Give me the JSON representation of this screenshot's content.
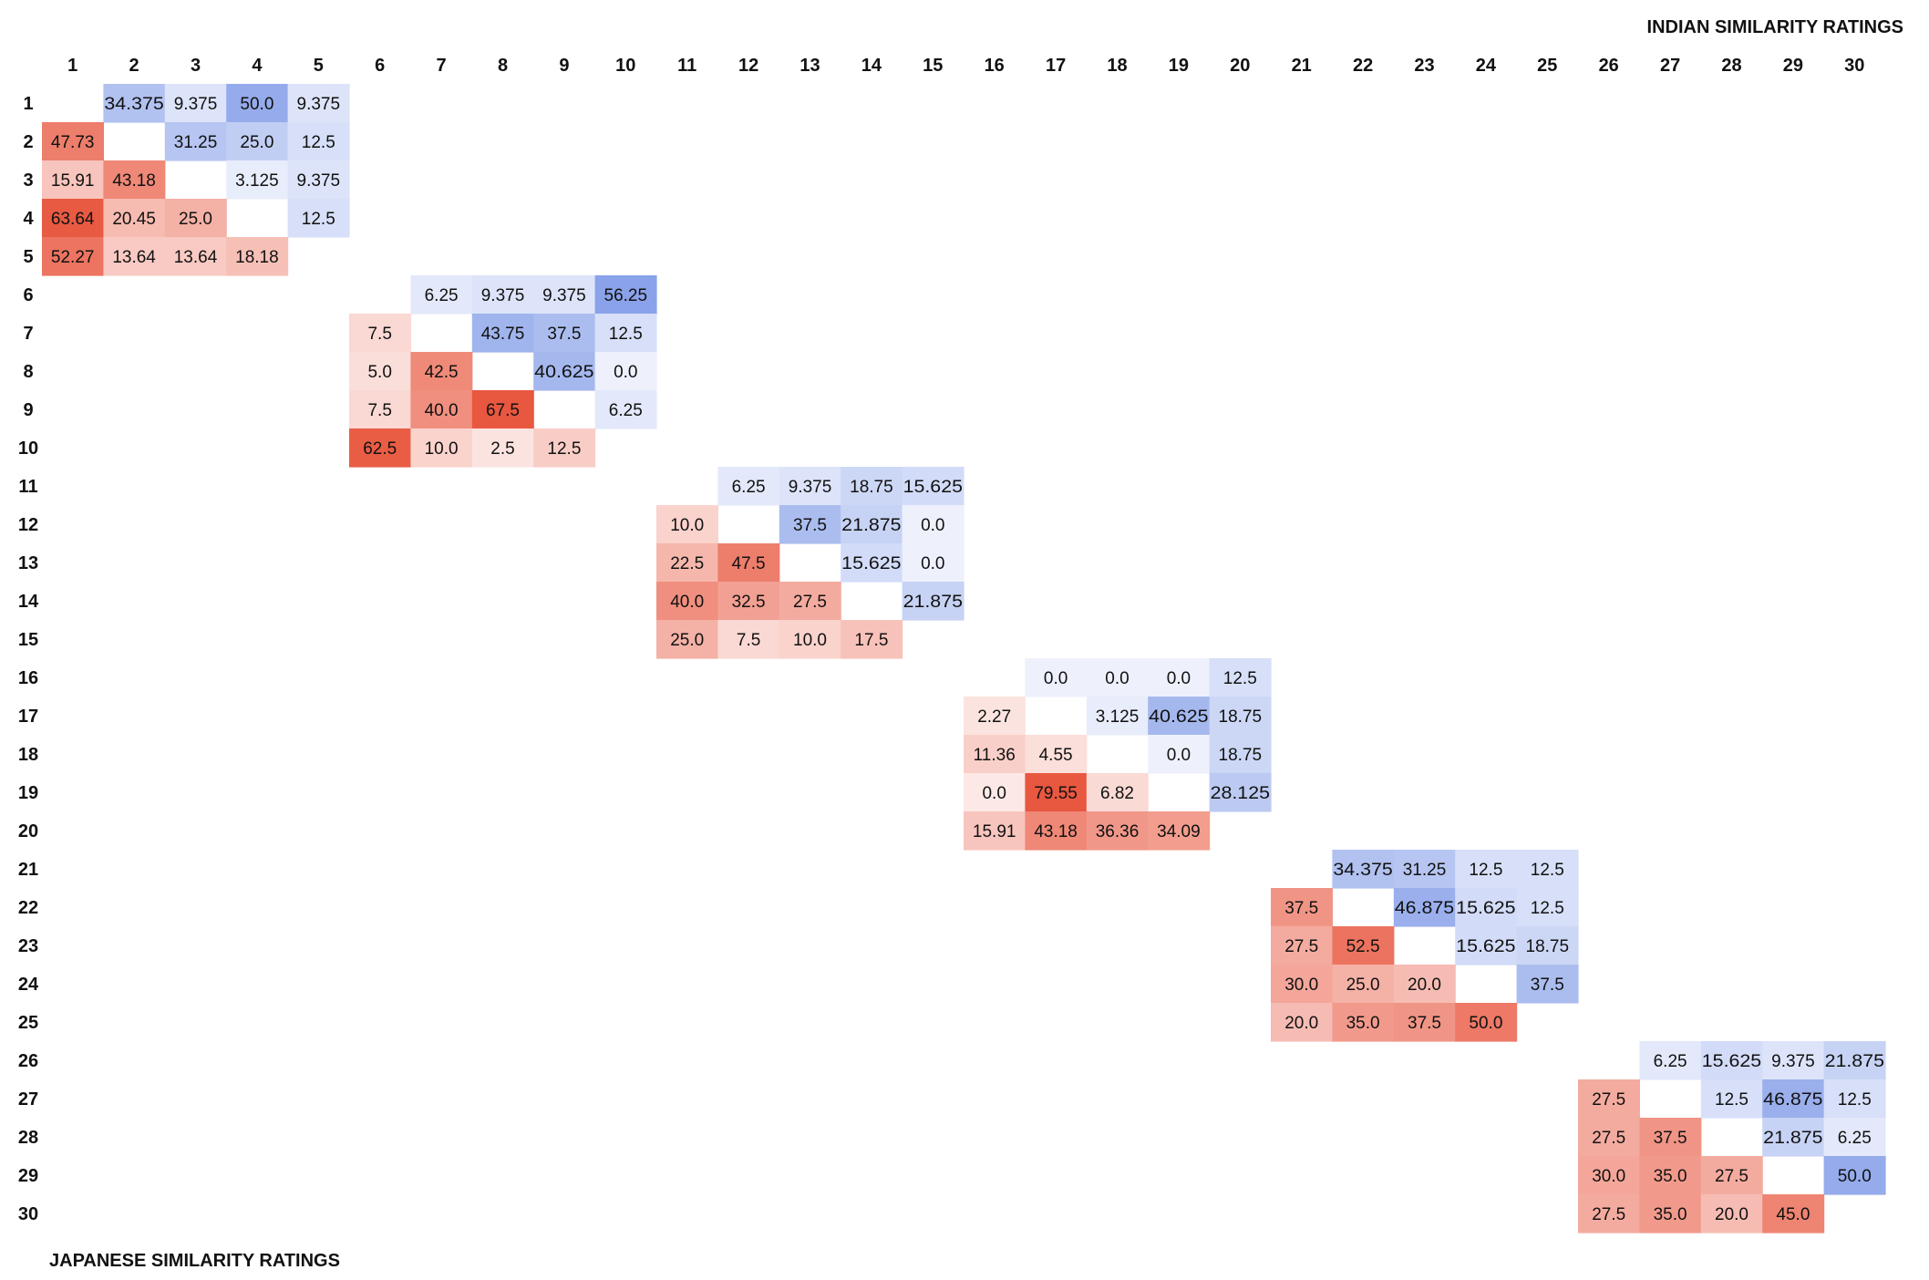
{
  "chart_data": {
    "type": "heatmap",
    "title": "",
    "upper_label": "INDIAN SIMILARITY RATINGS",
    "lower_label": "JAPANESE SIMILARITY RATINGS",
    "row_labels": [
      "1",
      "2",
      "3",
      "4",
      "5",
      "6",
      "7",
      "8",
      "9",
      "10",
      "11",
      "12",
      "13",
      "14",
      "15",
      "16",
      "17",
      "18",
      "19",
      "20",
      "21",
      "22",
      "23",
      "24",
      "25",
      "26",
      "27",
      "28",
      "29",
      "30"
    ],
    "col_labels": [
      "1",
      "2",
      "3",
      "4",
      "5",
      "6",
      "7",
      "8",
      "9",
      "10",
      "11",
      "12",
      "13",
      "14",
      "15",
      "16",
      "17",
      "18",
      "19",
      "20",
      "21",
      "22",
      "23",
      "24",
      "25",
      "26",
      "27",
      "28",
      "29",
      "30"
    ],
    "upper_color": "#7a96e6",
    "lower_color": "#e8573f",
    "blocks": [
      {
        "start": 1,
        "upper": [
          [
            "1",
            "2",
            "34.375"
          ],
          [
            "1",
            "3",
            "9.375"
          ],
          [
            "1",
            "4",
            "50.0"
          ],
          [
            "1",
            "5",
            "9.375"
          ],
          [
            "2",
            "3",
            "31.25"
          ],
          [
            "2",
            "4",
            "25.0"
          ],
          [
            "2",
            "5",
            "12.5"
          ],
          [
            "3",
            "4",
            "3.125"
          ],
          [
            "3",
            "5",
            "9.375"
          ],
          [
            "4",
            "5",
            "12.5"
          ]
        ],
        "lower": [
          [
            "2",
            "1",
            "47.73"
          ],
          [
            "3",
            "1",
            "15.91"
          ],
          [
            "3",
            "2",
            "43.18"
          ],
          [
            "4",
            "1",
            "63.64"
          ],
          [
            "4",
            "2",
            "20.45"
          ],
          [
            "4",
            "3",
            "25.0"
          ],
          [
            "5",
            "1",
            "52.27"
          ],
          [
            "5",
            "2",
            "13.64"
          ],
          [
            "5",
            "3",
            "13.64"
          ],
          [
            "5",
            "4",
            "18.18"
          ]
        ]
      },
      {
        "start": 6,
        "upper": [
          [
            "6",
            "7",
            "6.25"
          ],
          [
            "6",
            "8",
            "9.375"
          ],
          [
            "6",
            "9",
            "9.375"
          ],
          [
            "6",
            "10",
            "56.25"
          ],
          [
            "7",
            "8",
            "43.75"
          ],
          [
            "7",
            "9",
            "37.5"
          ],
          [
            "7",
            "10",
            "12.5"
          ],
          [
            "8",
            "9",
            "40.625"
          ],
          [
            "8",
            "10",
            "0.0"
          ],
          [
            "9",
            "10",
            "6.25"
          ]
        ],
        "lower": [
          [
            "7",
            "6",
            "7.5"
          ],
          [
            "8",
            "6",
            "5.0"
          ],
          [
            "8",
            "7",
            "42.5"
          ],
          [
            "9",
            "6",
            "7.5"
          ],
          [
            "9",
            "7",
            "40.0"
          ],
          [
            "9",
            "8",
            "67.5"
          ],
          [
            "10",
            "6",
            "62.5"
          ],
          [
            "10",
            "7",
            "10.0"
          ],
          [
            "10",
            "8",
            "2.5"
          ],
          [
            "10",
            "9",
            "12.5"
          ]
        ]
      },
      {
        "start": 11,
        "upper": [
          [
            "11",
            "12",
            "6.25"
          ],
          [
            "11",
            "13",
            "9.375"
          ],
          [
            "11",
            "14",
            "18.75"
          ],
          [
            "11",
            "15",
            "15.625"
          ],
          [
            "12",
            "13",
            "37.5"
          ],
          [
            "12",
            "14",
            "21.875"
          ],
          [
            "12",
            "15",
            "0.0"
          ],
          [
            "13",
            "14",
            "15.625"
          ],
          [
            "13",
            "15",
            "0.0"
          ],
          [
            "14",
            "15",
            "21.875"
          ]
        ],
        "lower": [
          [
            "12",
            "11",
            "10.0"
          ],
          [
            "13",
            "11",
            "22.5"
          ],
          [
            "13",
            "12",
            "47.5"
          ],
          [
            "14",
            "11",
            "40.0"
          ],
          [
            "14",
            "12",
            "32.5"
          ],
          [
            "14",
            "13",
            "27.5"
          ],
          [
            "15",
            "11",
            "25.0"
          ],
          [
            "15",
            "12",
            "7.5"
          ],
          [
            "15",
            "13",
            "10.0"
          ],
          [
            "15",
            "14",
            "17.5"
          ]
        ]
      },
      {
        "start": 16,
        "upper": [
          [
            "16",
            "17",
            "0.0"
          ],
          [
            "16",
            "18",
            "0.0"
          ],
          [
            "16",
            "19",
            "0.0"
          ],
          [
            "16",
            "20",
            "12.5"
          ],
          [
            "17",
            "18",
            "3.125"
          ],
          [
            "17",
            "19",
            "40.625"
          ],
          [
            "17",
            "20",
            "18.75"
          ],
          [
            "18",
            "19",
            "0.0"
          ],
          [
            "18",
            "20",
            "18.75"
          ],
          [
            "19",
            "20",
            "28.125"
          ]
        ],
        "lower": [
          [
            "17",
            "16",
            "2.27"
          ],
          [
            "18",
            "16",
            "11.36"
          ],
          [
            "18",
            "17",
            "4.55"
          ],
          [
            "19",
            "16",
            "0.0"
          ],
          [
            "19",
            "17",
            "79.55"
          ],
          [
            "19",
            "18",
            "6.82"
          ],
          [
            "20",
            "16",
            "15.91"
          ],
          [
            "20",
            "17",
            "43.18"
          ],
          [
            "20",
            "18",
            "36.36"
          ],
          [
            "20",
            "19",
            "34.09"
          ]
        ]
      },
      {
        "start": 21,
        "upper": [
          [
            "21",
            "22",
            "34.375"
          ],
          [
            "21",
            "23",
            "31.25"
          ],
          [
            "21",
            "24",
            "12.5"
          ],
          [
            "21",
            "25",
            "12.5"
          ],
          [
            "22",
            "23",
            "46.875"
          ],
          [
            "22",
            "24",
            "15.625"
          ],
          [
            "22",
            "25",
            "12.5"
          ],
          [
            "23",
            "24",
            "15.625"
          ],
          [
            "23",
            "25",
            "18.75"
          ],
          [
            "24",
            "25",
            "37.5"
          ]
        ],
        "lower": [
          [
            "22",
            "21",
            "37.5"
          ],
          [
            "23",
            "21",
            "27.5"
          ],
          [
            "23",
            "22",
            "52.5"
          ],
          [
            "24",
            "21",
            "30.0"
          ],
          [
            "24",
            "22",
            "25.0"
          ],
          [
            "24",
            "23",
            "20.0"
          ],
          [
            "25",
            "21",
            "20.0"
          ],
          [
            "25",
            "22",
            "35.0"
          ],
          [
            "25",
            "23",
            "37.5"
          ],
          [
            "25",
            "24",
            "50.0"
          ]
        ]
      },
      {
        "start": 26,
        "upper": [
          [
            "26",
            "27",
            "6.25"
          ],
          [
            "26",
            "28",
            "15.625"
          ],
          [
            "26",
            "29",
            "9.375"
          ],
          [
            "26",
            "30",
            "21.875"
          ],
          [
            "27",
            "28",
            "12.5"
          ],
          [
            "27",
            "29",
            "46.875"
          ],
          [
            "27",
            "30",
            "12.5"
          ],
          [
            "28",
            "29",
            "21.875"
          ],
          [
            "28",
            "30",
            "6.25"
          ],
          [
            "29",
            "30",
            "50.0"
          ]
        ],
        "lower": [
          [
            "27",
            "26",
            "27.5"
          ],
          [
            "28",
            "26",
            "27.5"
          ],
          [
            "28",
            "27",
            "37.5"
          ],
          [
            "29",
            "26",
            "30.0"
          ],
          [
            "29",
            "27",
            "35.0"
          ],
          [
            "29",
            "28",
            "27.5"
          ],
          [
            "30",
            "26",
            "27.5"
          ],
          [
            "30",
            "27",
            "35.0"
          ],
          [
            "30",
            "28",
            "20.0"
          ],
          [
            "30",
            "29",
            "45.0"
          ]
        ]
      }
    ]
  }
}
